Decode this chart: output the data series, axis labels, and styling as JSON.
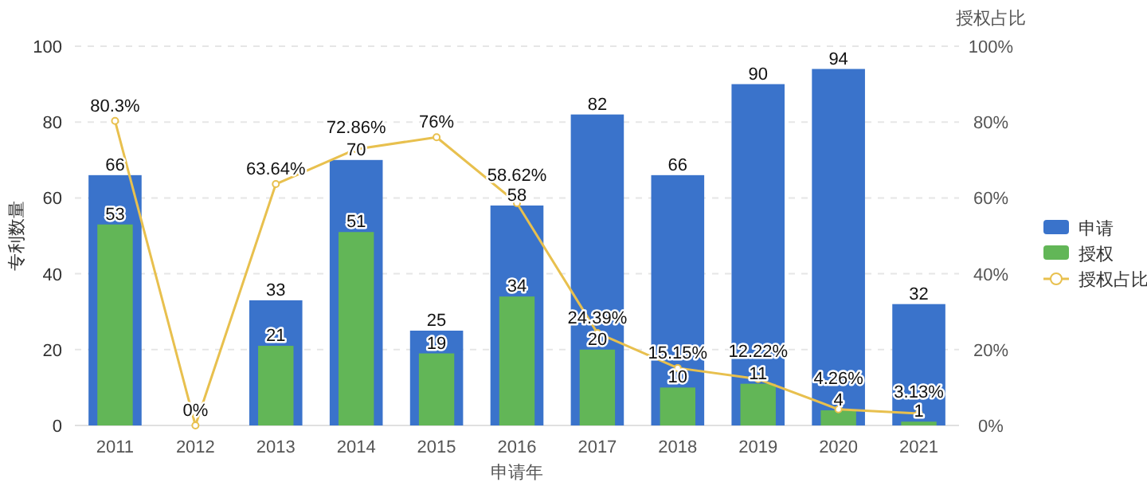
{
  "chart_data": {
    "type": "bar",
    "xlabel": "申请年",
    "ylabel": "专利数量",
    "y2label": "授权占比",
    "categories": [
      "2011",
      "2012",
      "2013",
      "2014",
      "2015",
      "2016",
      "2017",
      "2018",
      "2019",
      "2020",
      "2021"
    ],
    "series": [
      {
        "name": "申请",
        "color": "#3a73cb",
        "values": [
          66,
          null,
          33,
          70,
          25,
          58,
          82,
          66,
          90,
          94,
          32
        ]
      },
      {
        "name": "授权",
        "color": "#62b657",
        "values": [
          53,
          null,
          21,
          51,
          19,
          34,
          20,
          10,
          11,
          4,
          1
        ]
      },
      {
        "name": "授权占比",
        "type": "line",
        "color": "#e8c04e",
        "marker": "circle",
        "values": [
          80.3,
          0,
          63.64,
          72.86,
          76,
          58.62,
          24.39,
          15.15,
          12.22,
          4.26,
          3.13
        ],
        "value_labels": [
          "80.3%",
          "0%",
          "63.64%",
          "72.86%",
          "76%",
          "58.62%",
          "24.39%",
          "15.15%",
          "12.22%",
          "4.26%",
          "3.13%"
        ]
      }
    ],
    "ylim": [
      0,
      100
    ],
    "yticks": [
      0,
      20,
      40,
      60,
      80,
      100
    ],
    "y2lim": [
      0,
      100
    ],
    "y2ticks": [
      {
        "value": 0,
        "label": "0%"
      },
      {
        "value": 20,
        "label": "20%"
      },
      {
        "value": 40,
        "label": "40%"
      },
      {
        "value": 60,
        "label": "60%"
      },
      {
        "value": 80,
        "label": "80%"
      },
      {
        "value": 100,
        "label": "100%"
      }
    ],
    "grid": "y",
    "legend": "right",
    "data_labels": true
  }
}
